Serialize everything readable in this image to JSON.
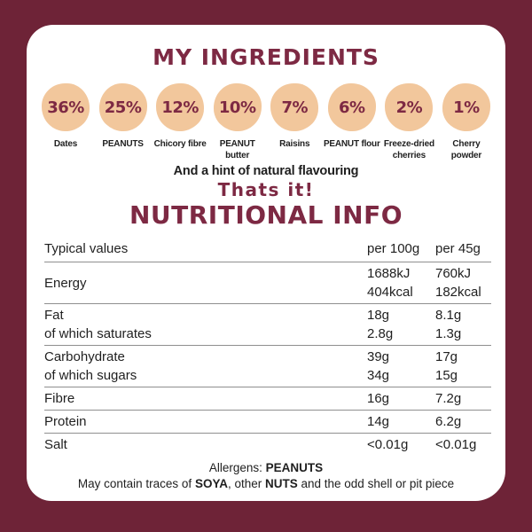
{
  "colors": {
    "background": "#6e2337",
    "panel": "#ffffff",
    "accent": "#7d2943",
    "circle_fill": "#f2c79c",
    "text": "#1f1f1f",
    "divider": "#8f8f8f"
  },
  "header": {
    "title": "MY INGREDIENTS"
  },
  "ingredients": {
    "items": [
      {
        "percent": "36%",
        "label": "Dates"
      },
      {
        "percent": "25%",
        "label": "PEANUTS"
      },
      {
        "percent": "12%",
        "label": "Chicory fibre"
      },
      {
        "percent": "10%",
        "label": "PEANUT butter"
      },
      {
        "percent": "7%",
        "label": "Raisins"
      },
      {
        "percent": "6%",
        "label": "PEANUT flour"
      },
      {
        "percent": "2%",
        "label": "Freeze-dried cherries"
      },
      {
        "percent": "1%",
        "label": "Cherry powder"
      }
    ],
    "hint": "And a hint of natural flavouring",
    "tagline": "Thats it!"
  },
  "nutrition": {
    "title": "NUTRITIONAL INFO",
    "columns": {
      "label": "Typical values",
      "per100": "per 100g",
      "per45": "per 45g"
    },
    "rows": [
      {
        "labels": [
          "Energy"
        ],
        "per100": [
          "1688kJ",
          "404kcal"
        ],
        "per45": [
          "760kJ",
          "182kcal"
        ]
      },
      {
        "labels": [
          "Fat",
          "of which saturates"
        ],
        "per100": [
          "18g",
          "2.8g"
        ],
        "per45": [
          "8.1g",
          "1.3g"
        ]
      },
      {
        "labels": [
          "Carbohydrate",
          "of which sugars"
        ],
        "per100": [
          "39g",
          "34g"
        ],
        "per45": [
          "17g",
          "15g"
        ]
      },
      {
        "labels": [
          "Fibre"
        ],
        "per100": [
          "16g"
        ],
        "per45": [
          "7.2g"
        ]
      },
      {
        "labels": [
          "Protein"
        ],
        "per100": [
          "14g"
        ],
        "per45": [
          "6.2g"
        ]
      },
      {
        "labels": [
          "Salt"
        ],
        "per100": [
          "<0.01g"
        ],
        "per45": [
          "<0.01g"
        ]
      }
    ]
  },
  "allergens": {
    "line1": [
      {
        "text": "Allergens: ",
        "bold": false
      },
      {
        "text": "PEANUTS",
        "bold": true
      }
    ],
    "line2": [
      {
        "text": "May contain traces of ",
        "bold": false
      },
      {
        "text": "SOYA",
        "bold": true
      },
      {
        "text": ", other ",
        "bold": false
      },
      {
        "text": "NUTS",
        "bold": true
      },
      {
        "text": " and the odd shell or pit piece",
        "bold": false
      }
    ]
  }
}
